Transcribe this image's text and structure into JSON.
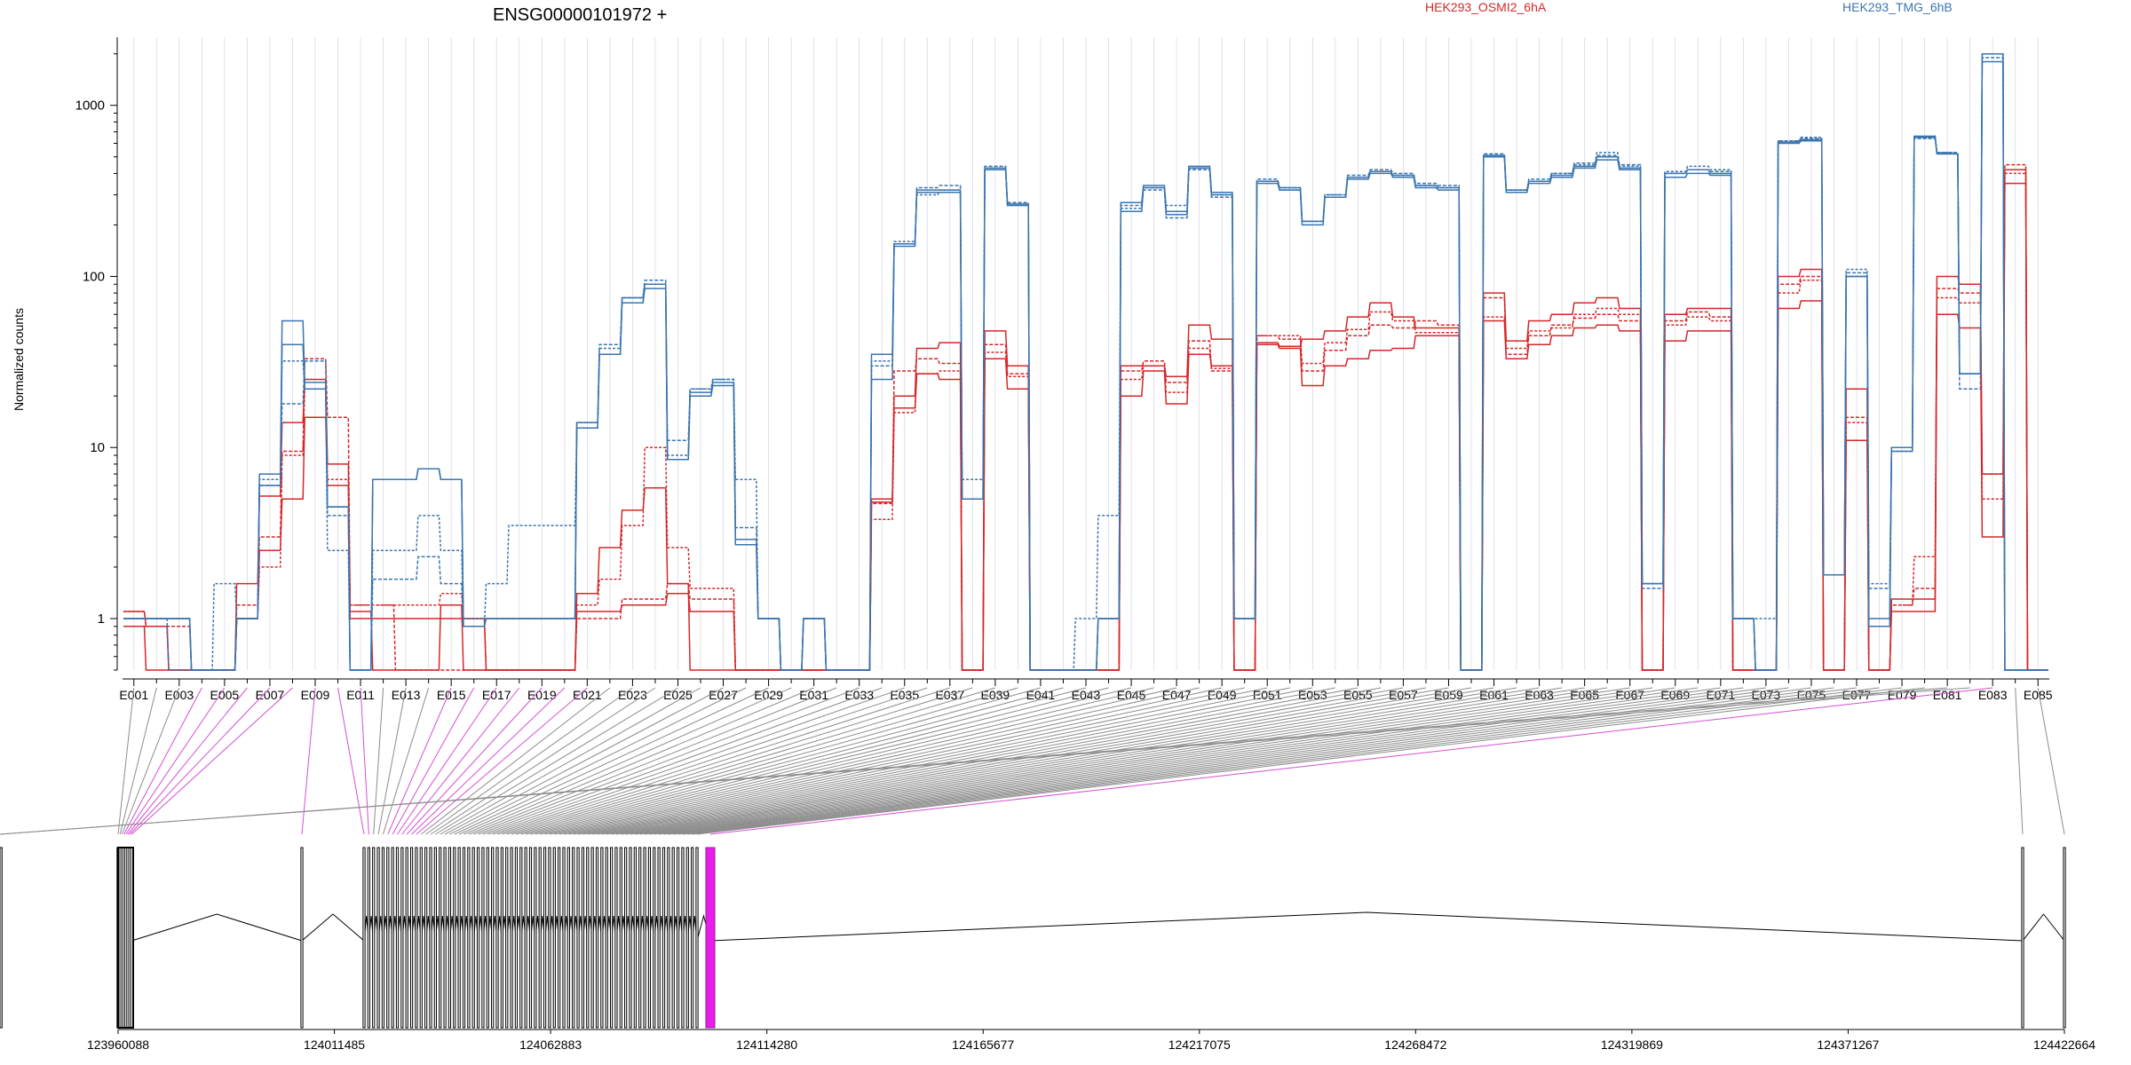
{
  "chart_data": {
    "type": "line",
    "title": "ENSG00000101972 +",
    "ylabel": "Normalized counts",
    "yscale": "log",
    "ylim": [
      0.5,
      2500
    ],
    "yticks": [
      1,
      10,
      100,
      1000
    ],
    "ytick_labels": [
      "1",
      "10",
      "100",
      "1000"
    ],
    "grid": "vertical",
    "legend": "top",
    "colors": {
      "HEK293_OSMI2_6hA": "#d62728",
      "HEK293_TMG_6hB": "#3a75b0",
      "highlight": "#e81ee8",
      "connector": "#7f7f7f"
    },
    "exons": [
      "E001",
      "E002",
      "E003",
      "E004",
      "E005",
      "E006",
      "E007",
      "E008",
      "E009",
      "E010",
      "E011",
      "E012",
      "E013",
      "E014",
      "E015",
      "E016",
      "E017",
      "E018",
      "E019",
      "E020",
      "E021",
      "E022",
      "E023",
      "E024",
      "E025",
      "E026",
      "E027",
      "E028",
      "E029",
      "E030",
      "E031",
      "E032",
      "E033",
      "E034",
      "E035",
      "E036",
      "E037",
      "E038",
      "E039",
      "E040",
      "E041",
      "E042",
      "E043",
      "E044",
      "E045",
      "E046",
      "E047",
      "E048",
      "E049",
      "E050",
      "E051",
      "E052",
      "E053",
      "E054",
      "E055",
      "E056",
      "E057",
      "E058",
      "E059",
      "E060",
      "E061",
      "E062",
      "E063",
      "E064",
      "E065",
      "E066",
      "E067",
      "E068",
      "E069",
      "E070",
      "E071",
      "E072",
      "E073",
      "E074",
      "E075",
      "E076",
      "E077",
      "E078",
      "E079",
      "E080",
      "E081",
      "E082",
      "E083",
      "E084",
      "E085"
    ],
    "exon_labels": [
      "E001",
      "E003",
      "E005",
      "E007",
      "E009",
      "E011",
      "E013",
      "E015",
      "E017",
      "E019",
      "E021",
      "E023",
      "E025",
      "E027",
      "E029",
      "E031",
      "E033",
      "E035",
      "E037",
      "E039",
      "E041",
      "E043",
      "E045",
      "E047",
      "E049",
      "E051",
      "E053",
      "E055",
      "E057",
      "E059",
      "E061",
      "E063",
      "E065",
      "E067",
      "E069",
      "E071",
      "E073",
      "E075",
      "E077",
      "E079",
      "E081",
      "E083",
      "E085"
    ],
    "series": [
      {
        "name": "HEK293_OSMI2_6hA",
        "group": "HEK293_OSMI2_6hA",
        "values": [
          1.1,
          0.9,
          0.5,
          0.5,
          0.5,
          1.0,
          2.5,
          5.0,
          15,
          6.0,
          1.0,
          1.0,
          1.0,
          1.0,
          1.0,
          1.0,
          0.5,
          0.5,
          0.5,
          0.5,
          1.1,
          1.1,
          1.2,
          1.2,
          1.4,
          1.1,
          1.1,
          0.5,
          0.5,
          0.5,
          0.5,
          0.5,
          0.5,
          5.0,
          17,
          27,
          25,
          0.5,
          33,
          22,
          0.5,
          0.5,
          0.5,
          0.5,
          20,
          28,
          18,
          35,
          30,
          0.5,
          40,
          38,
          23,
          30,
          33,
          37,
          38,
          45,
          45,
          0.5,
          55,
          33,
          40,
          45,
          50,
          52,
          48,
          0.5,
          42,
          48,
          48,
          0.5,
          0.5,
          65,
          72,
          0.5,
          11,
          0.5,
          1.1,
          1.1,
          60,
          50,
          3.0,
          350,
          0.5
        ]
      },
      {
        "name": "HEK293_OSMI2_6hA",
        "group": "HEK293_OSMI2_6hA",
        "values": [
          0.9,
          0.9,
          0.9,
          0.5,
          0.5,
          1.2,
          3.0,
          9.5,
          33,
          15,
          1.2,
          1.2,
          0.5,
          0.5,
          0.5,
          0.5,
          0.5,
          0.5,
          0.5,
          0.5,
          1.0,
          1.0,
          1.3,
          1.3,
          1.6,
          1.3,
          1.3,
          0.5,
          0.5,
          0.5,
          0.5,
          0.5,
          0.5,
          4.7,
          28,
          33,
          31,
          0.5,
          40,
          27,
          0.5,
          0.5,
          0.5,
          0.5,
          28,
          32,
          24,
          42,
          28,
          0.5,
          45,
          43,
          28,
          37,
          45,
          52,
          50,
          55,
          52,
          0.5,
          75,
          35,
          45,
          52,
          57,
          60,
          55,
          0.5,
          55,
          62,
          58,
          0.5,
          0.5,
          90,
          100,
          0.5,
          15,
          0.5,
          1.2,
          1.5,
          85,
          80,
          7.0,
          450,
          0.5
        ]
      },
      {
        "name": "HEK293_OSMI2_6hA",
        "group": "HEK293_OSMI2_6hA",
        "values": [
          0.9,
          0.5,
          0.5,
          0.5,
          0.5,
          1.6,
          5.2,
          14,
          25,
          8.0,
          1.1,
          0.5,
          0.5,
          0.5,
          1.2,
          0.5,
          0.5,
          0.5,
          0.5,
          0.5,
          1.4,
          2.6,
          4.3,
          5.8,
          1.6,
          0.5,
          0.5,
          0.5,
          0.5,
          0.5,
          0.5,
          0.5,
          0.5,
          4.8,
          20,
          38,
          41,
          0.5,
          48,
          30,
          0.5,
          0.5,
          0.5,
          0.5,
          30,
          30,
          26,
          52,
          43,
          0.5,
          41,
          39,
          43,
          48,
          58,
          70,
          58,
          50,
          50,
          0.5,
          80,
          42,
          55,
          60,
          70,
          75,
          65,
          0.5,
          60,
          65,
          65,
          0.5,
          0.5,
          100,
          110,
          0.5,
          22,
          0.5,
          1.3,
          1.3,
          100,
          90,
          7.0,
          420,
          0.5
        ]
      },
      {
        "name": "HEK293_OSMI2_6hA",
        "group": "HEK293_OSMI2_6hA",
        "values": [
          1.1,
          0.9,
          0.5,
          0.5,
          0.5,
          1.0,
          2.0,
          9.0,
          22,
          6.5,
          1.2,
          1.2,
          1.2,
          1.2,
          1.4,
          1.0,
          0.5,
          0.5,
          0.5,
          0.5,
          1.2,
          1.7,
          3.5,
          10,
          2.6,
          1.5,
          1.5,
          0.5,
          0.5,
          0.5,
          0.5,
          0.5,
          0.5,
          3.8,
          16,
          27,
          28,
          0.5,
          36,
          26,
          0.5,
          0.5,
          0.5,
          0.5,
          25,
          30,
          21,
          38,
          29,
          0.5,
          45,
          45,
          31,
          41,
          49,
          62,
          55,
          47,
          47,
          0.5,
          58,
          38,
          48,
          50,
          60,
          65,
          60,
          0.5,
          52,
          58,
          55,
          0.5,
          0.5,
          80,
          95,
          0.5,
          14,
          0.5,
          1.2,
          2.3,
          75,
          70,
          5.0,
          400,
          0.5
        ]
      },
      {
        "name": "HEK293_TMG_6hB",
        "group": "HEK293_TMG_6hB",
        "values": [
          1.0,
          1.0,
          1.0,
          0.5,
          0.5,
          1.0,
          6.0,
          40,
          22,
          4.5,
          0.5,
          6.5,
          6.5,
          7.5,
          6.5,
          0.9,
          1.0,
          1.0,
          1.0,
          1.0,
          13,
          35,
          70,
          85,
          8.5,
          20,
          23,
          2.7,
          1.0,
          0.5,
          1.0,
          0.5,
          0.5,
          25,
          150,
          320,
          320,
          5.0,
          430,
          265,
          0.5,
          0.5,
          0.5,
          1.0,
          240,
          330,
          230,
          430,
          300,
          1.0,
          350,
          320,
          200,
          290,
          370,
          400,
          380,
          330,
          320,
          0.5,
          500,
          310,
          350,
          380,
          430,
          480,
          420,
          1.6,
          380,
          400,
          390,
          1.0,
          0.5,
          600,
          620,
          1.8,
          100,
          0.9,
          9.5,
          650,
          520,
          27,
          1800,
          0.5,
          0.5
        ]
      },
      {
        "name": "HEK293_TMG_6hB",
        "group": "HEK293_TMG_6hB",
        "values": [
          1.0,
          1.0,
          0.5,
          0.5,
          0.5,
          1.0,
          6.0,
          18,
          32,
          4.0,
          0.5,
          1.7,
          1.7,
          2.3,
          1.6,
          1.0,
          1.0,
          1.0,
          1.0,
          1.0,
          14,
          40,
          75,
          95,
          11,
          22,
          25,
          3.4,
          1.0,
          0.5,
          1.0,
          0.5,
          0.5,
          30,
          155,
          330,
          340,
          5.0,
          440,
          270,
          0.5,
          0.5,
          0.5,
          1.0,
          260,
          320,
          220,
          420,
          290,
          1.0,
          370,
          330,
          210,
          300,
          390,
          420,
          400,
          350,
          340,
          0.5,
          520,
          320,
          370,
          400,
          460,
          510,
          450,
          1.5,
          400,
          420,
          410,
          1.0,
          0.5,
          620,
          640,
          1.8,
          105,
          1.5,
          10,
          640,
          530,
          22,
          1900,
          0.5,
          0.5
        ]
      },
      {
        "name": "HEK293_TMG_6hB",
        "group": "HEK293_TMG_6hB",
        "values": [
          1.0,
          1.0,
          1.0,
          0.5,
          0.5,
          1.0,
          7.0,
          55,
          24,
          4.5,
          0.5,
          6.5,
          6.5,
          7.5,
          6.5,
          0.9,
          1.0,
          1.0,
          1.0,
          1.0,
          14,
          35,
          75,
          90,
          8.5,
          21,
          24,
          2.9,
          1.0,
          0.5,
          1.0,
          0.5,
          0.5,
          35,
          155,
          310,
          310,
          5.0,
          420,
          260,
          0.5,
          0.5,
          0.5,
          1.0,
          270,
          340,
          240,
          440,
          310,
          1.0,
          360,
          330,
          210,
          290,
          380,
          410,
          390,
          340,
          330,
          0.5,
          510,
          320,
          360,
          390,
          440,
          500,
          430,
          1.6,
          400,
          420,
          400,
          1.0,
          0.5,
          610,
          630,
          1.8,
          100,
          1.0,
          10,
          660,
          520,
          27,
          2000,
          0.5,
          0.5
        ]
      },
      {
        "name": "HEK293_TMG_6hB",
        "group": "HEK293_TMG_6hB",
        "values": [
          1.0,
          1.0,
          1.0,
          0.5,
          1.6,
          1.0,
          6.5,
          32,
          22,
          2.5,
          0.5,
          2.5,
          2.5,
          4.0,
          2.5,
          0.9,
          1.6,
          3.5,
          3.5,
          3.5,
          13,
          38,
          70,
          90,
          9.0,
          22,
          25,
          6.5,
          1.0,
          0.5,
          1.0,
          0.5,
          0.5,
          32,
          160,
          300,
          320,
          6.5,
          420,
          260,
          0.5,
          0.5,
          1.0,
          4.0,
          250,
          330,
          260,
          430,
          300,
          1.0,
          360,
          320,
          210,
          300,
          380,
          410,
          390,
          340,
          330,
          0.5,
          510,
          320,
          360,
          400,
          450,
          530,
          440,
          1.6,
          410,
          440,
          420,
          1.0,
          1.0,
          620,
          650,
          1.8,
          110,
          1.6,
          9.5,
          660,
          530,
          27,
          2000,
          0.5,
          0.5
        ]
      }
    ],
    "genome_ticks": [
      "123960088",
      "124011485",
      "124062883",
      "124114280",
      "124165677",
      "124217075",
      "124268472",
      "124319869",
      "124371267",
      "124422664"
    ]
  },
  "header": {
    "title": "ENSG00000101972 +",
    "legend_a": "HEK293_OSMI2_6hA",
    "legend_b": "HEK293_TMG_6hB"
  }
}
